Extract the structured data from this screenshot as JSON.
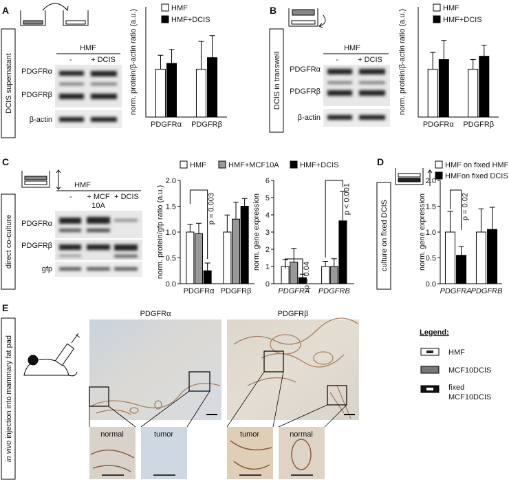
{
  "panel_labels": [
    "A",
    "B",
    "C",
    "D",
    "E"
  ],
  "panel_a": {
    "condition": "DCIS supernatant",
    "blot": {
      "group": "HMF",
      "lanes": [
        [
          "-"
        ],
        [
          "+ DCIS"
        ]
      ],
      "rows": [
        "PDGFRα",
        "PDGFRβ",
        "β-actin"
      ]
    }
  },
  "panel_b": {
    "condition": "DCIS in transwell",
    "blot": {
      "group": "HMF",
      "lanes": [
        [
          "-"
        ],
        [
          "+ DCIS"
        ]
      ],
      "rows": [
        "PDGFRα",
        "PDGFRβ",
        "β-actin"
      ]
    }
  },
  "panel_c": {
    "condition": "direct co-culture",
    "blot": {
      "group": "HMF",
      "lanes": [
        [
          "-"
        ],
        [
          "+ MCF",
          "10A"
        ],
        [
          "+ DCIS"
        ]
      ],
      "rows": [
        "PDGFRα",
        "PDGFRβ",
        "gfp"
      ]
    }
  },
  "panel_d": {
    "condition": "culture on fixed DCIS"
  },
  "panel_e": {
    "condition_italic": "in vivo",
    "condition": "injection into mammary fat pad",
    "image_titles": [
      "PDGFRα",
      "PDGFRβ"
    ],
    "inset_labels": [
      "normal",
      "tumor",
      "tumor",
      "normal"
    ],
    "legend": {
      "title": "Legend:",
      "items": [
        [
          "HMF"
        ],
        [
          "MCF10DCIS"
        ],
        [
          "fixed",
          "MCF10DCIS"
        ]
      ]
    }
  },
  "chart_data": [
    {
      "type": "bar",
      "y_label": "norm. protein/β-actin ratio (a.u.)",
      "categories": [
        "PDGFRα",
        "PDGFRβ"
      ],
      "ylim": [
        0,
        2.3
      ],
      "series": [
        {
          "name": "HMF",
          "color": "#ffffff",
          "values": [
            1.0,
            1.0
          ],
          "errors": [
            0.29,
            0.58
          ]
        },
        {
          "name": "HMF+DCIS",
          "color": "#000000",
          "values": [
            1.12,
            1.24
          ],
          "errors": [
            0.29,
            0.46
          ]
        }
      ]
    },
    {
      "type": "bar",
      "y_label": "norm. protein/β-actin ratio (a.u.)",
      "categories": [
        "PDGFRα",
        "PDGFRβ"
      ],
      "ylim": [
        0,
        2.3
      ],
      "series": [
        {
          "name": "HMF",
          "color": "#ffffff",
          "values": [
            1.0,
            1.0
          ],
          "errors": [
            0.35,
            0.2
          ]
        },
        {
          "name": "HMF+DCIS",
          "color": "#000000",
          "values": [
            1.2,
            1.27
          ],
          "errors": [
            0.4,
            0.23
          ]
        }
      ]
    },
    {
      "type": "bar",
      "y_label": "norm. protein/gfp ratio (a.u.)",
      "categories": [
        "PDGFRα",
        "PDGFRβ"
      ],
      "ylim": [
        0,
        2
      ],
      "yticks": [
        {
          "value": 0,
          "label": "0.0"
        },
        {
          "value": 0.5,
          "label": "0.5"
        },
        {
          "value": 1,
          "label": "1.0"
        },
        {
          "value": 1.5,
          "label": "1.5"
        },
        {
          "value": 2,
          "label": "2.0"
        }
      ],
      "series": [
        {
          "name": "HMF",
          "color": "#ffffff",
          "values": [
            1.0,
            1.0
          ],
          "errors": [
            0.15,
            0.33
          ]
        },
        {
          "name": "HMF+MCF10A",
          "color": "#999999",
          "values": [
            0.97,
            1.25
          ],
          "errors": [
            0.2,
            0.33
          ]
        },
        {
          "name": "HMF+DCIS",
          "color": "#000000",
          "values": [
            0.25,
            1.5
          ],
          "errors": [
            0.15,
            0.15
          ]
        }
      ],
      "annotations": [
        "p = 0.003"
      ]
    },
    {
      "type": "bar",
      "y_label": "norm. gene expression",
      "categories": [
        "PDGFRA",
        "PDGFRB"
      ],
      "ylim": [
        0,
        6
      ],
      "yticks": [
        0,
        1,
        2,
        3,
        4,
        5,
        6
      ],
      "series": [
        {
          "color": "#ffffff",
          "values": [
            1.0,
            1.0
          ],
          "errors": [
            0.4,
            0.3
          ]
        },
        {
          "color": "#999999",
          "values": [
            1.25,
            1.0
          ],
          "errors": [
            0.8,
            0.45
          ]
        },
        {
          "color": "#000000",
          "values": [
            0.35,
            3.65
          ],
          "errors": [
            0.2,
            1.7
          ]
        }
      ],
      "annotations": [
        "p = 0.04",
        "p < 0.001"
      ]
    },
    {
      "type": "bar",
      "y_label": "norm. gene expression",
      "categories": [
        "PDGFRA",
        "PDGFRB"
      ],
      "ylim": [
        0,
        2
      ],
      "yticks": [
        {
          "value": 0,
          "label": "0.0"
        },
        {
          "value": 0.5,
          "label": "0.5"
        },
        {
          "value": 1,
          "label": "1.0"
        },
        {
          "value": 1.5,
          "label": "1.5"
        },
        {
          "value": 2,
          "label": "2.0"
        }
      ],
      "series": [
        {
          "name": "HMF on fixed HMF",
          "color": "#ffffff",
          "values": [
            1.0,
            1.0
          ],
          "errors": [
            0.4,
            0.45
          ]
        },
        {
          "name": "HMFon fixed DCIS",
          "color": "#000000",
          "values": [
            0.55,
            1.05
          ],
          "errors": [
            0.17,
            0.43
          ]
        }
      ],
      "annotations": [
        "p = 0.02"
      ]
    }
  ]
}
